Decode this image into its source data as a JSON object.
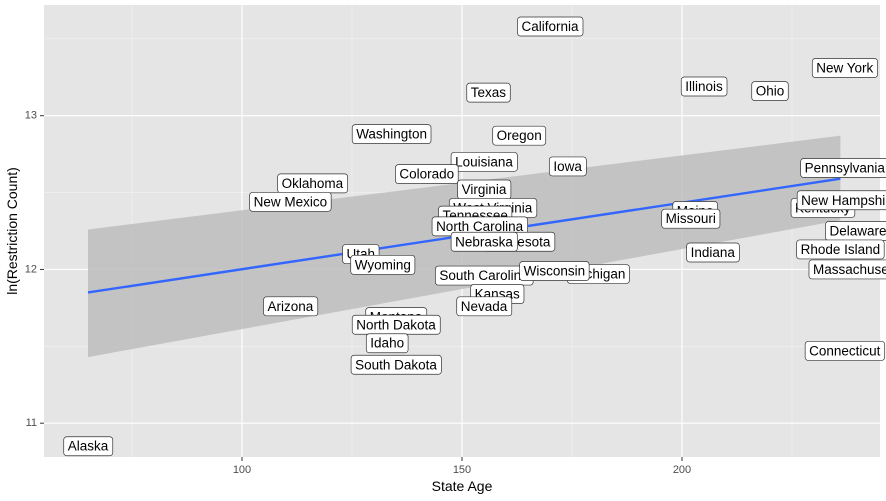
{
  "chart_data": {
    "type": "scatter",
    "xlabel": "State Age",
    "ylabel": "ln(Restriction Count)",
    "xlim": [
      55,
      245
    ],
    "ylim": [
      10.78,
      13.72
    ],
    "x_ticks": [
      100,
      150,
      200
    ],
    "y_ticks": [
      11,
      12,
      13
    ],
    "grid": true,
    "background": "#e5e5e5",
    "regression": {
      "x": [
        65,
        236
      ],
      "y": [
        11.85,
        12.59
      ],
      "ci_low": [
        11.43,
        12.32
      ],
      "ci_high": [
        12.26,
        12.87
      ],
      "color": "#3366ff",
      "band_color": "#bdbdbd"
    },
    "points": [
      {
        "label": "Alaska",
        "x": 65,
        "y": 10.85
      },
      {
        "label": "California",
        "x": 170,
        "y": 13.58
      },
      {
        "label": "Texas",
        "x": 156,
        "y": 13.15
      },
      {
        "label": "Illinois",
        "x": 205,
        "y": 13.19
      },
      {
        "label": "Ohio",
        "x": 220,
        "y": 13.16
      },
      {
        "label": "New York",
        "x": 237,
        "y": 13.31
      },
      {
        "label": "Washington",
        "x": 134,
        "y": 12.88
      },
      {
        "label": "Oregon",
        "x": 163,
        "y": 12.87
      },
      {
        "label": "Louisiana",
        "x": 155,
        "y": 12.7
      },
      {
        "label": "Colorado",
        "x": 142,
        "y": 12.62
      },
      {
        "label": "Iowa",
        "x": 174,
        "y": 12.67
      },
      {
        "label": "Pennsylvania",
        "x": 237,
        "y": 12.66
      },
      {
        "label": "Oklahoma",
        "x": 116,
        "y": 12.56
      },
      {
        "label": "Virginia",
        "x": 155,
        "y": 12.52
      },
      {
        "label": "New Mexico",
        "x": 111,
        "y": 12.44
      },
      {
        "label": "West Virginia",
        "x": 157,
        "y": 12.4
      },
      {
        "label": "Tennessee",
        "x": 153,
        "y": 12.35
      },
      {
        "label": "North Carolina",
        "x": 154,
        "y": 12.28
      },
      {
        "label": "Minnesota",
        "x": 163,
        "y": 12.18
      },
      {
        "label": "Nebraska",
        "x": 155,
        "y": 12.18
      },
      {
        "label": "Maine",
        "x": 203,
        "y": 12.38
      },
      {
        "label": "Missouri",
        "x": 202,
        "y": 12.33
      },
      {
        "label": "Kentucky",
        "x": 232,
        "y": 12.4
      },
      {
        "label": "New Hampshire",
        "x": 238,
        "y": 12.45
      },
      {
        "label": "Delaware",
        "x": 240,
        "y": 12.25
      },
      {
        "label": "Indiana",
        "x": 207,
        "y": 12.11
      },
      {
        "label": "Rhode Island",
        "x": 236,
        "y": 12.13
      },
      {
        "label": "Massachusetts",
        "x": 240,
        "y": 12.0
      },
      {
        "label": "Utah",
        "x": 127,
        "y": 12.1
      },
      {
        "label": "Wyoming",
        "x": 132,
        "y": 12.03
      },
      {
        "label": "South Carolina",
        "x": 155,
        "y": 11.96
      },
      {
        "label": "Michigan",
        "x": 181,
        "y": 11.97
      },
      {
        "label": "Wisconsin",
        "x": 171,
        "y": 11.99
      },
      {
        "label": "Kansas",
        "x": 158,
        "y": 11.84
      },
      {
        "label": "Nevada",
        "x": 155,
        "y": 11.76
      },
      {
        "label": "Arizona",
        "x": 111,
        "y": 11.76
      },
      {
        "label": "Montana",
        "x": 135,
        "y": 11.69
      },
      {
        "label": "North Dakota",
        "x": 135,
        "y": 11.64
      },
      {
        "label": "Idaho",
        "x": 133,
        "y": 11.52
      },
      {
        "label": "South Dakota",
        "x": 135,
        "y": 11.38
      },
      {
        "label": "Connecticut",
        "x": 237,
        "y": 11.47
      }
    ]
  }
}
